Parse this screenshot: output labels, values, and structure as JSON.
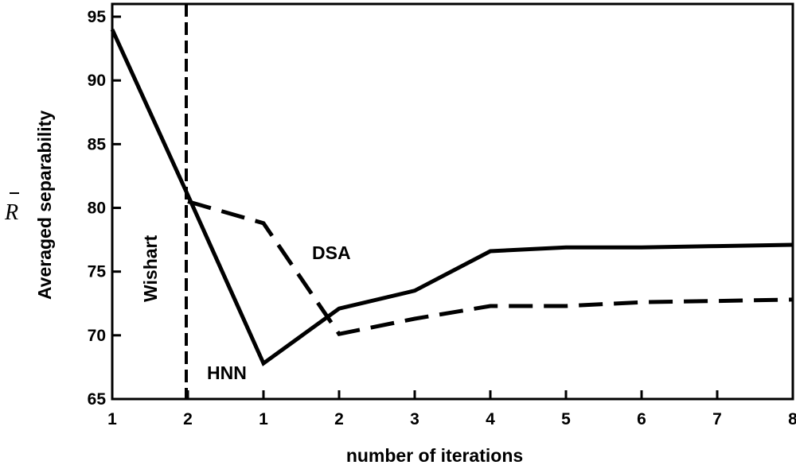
{
  "chart_data": {
    "type": "line",
    "xlabel": "number of iterations",
    "ylabel": "Averaged separability",
    "ylabel_symbol": "R",
    "ylim": [
      65,
      96
    ],
    "yticks": [
      65,
      70,
      75,
      80,
      85,
      90,
      95
    ],
    "x_positions": [
      0,
      1,
      2,
      3,
      4,
      5,
      6,
      7,
      8,
      9
    ],
    "x_tick_labels": [
      "1",
      "2",
      "1",
      "2",
      "3",
      "4",
      "5",
      "6",
      "7",
      "8"
    ],
    "xlim": [
      0,
      9
    ],
    "grid": false,
    "series": [
      {
        "name": "HNN",
        "style": "solid",
        "x": [
          0,
          1,
          2,
          3,
          4,
          5,
          6,
          7,
          8,
          9
        ],
        "y": [
          94.0,
          81.0,
          67.8,
          72.1,
          73.5,
          76.6,
          76.9,
          76.9,
          77.0,
          77.1
        ]
      },
      {
        "name": "DSA",
        "style": "dashed",
        "x": [
          1,
          2,
          3,
          4,
          5,
          6,
          7,
          8,
          9
        ],
        "y": [
          80.5,
          78.8,
          70.1,
          71.3,
          72.3,
          72.3,
          72.6,
          72.7,
          72.8
        ]
      }
    ],
    "annotations": [
      {
        "text": "Wishart",
        "x": 1
      },
      {
        "text": "DSA"
      },
      {
        "text": "HNN"
      }
    ],
    "colors": {
      "line": "#000000",
      "axes": "#000000",
      "background": "#ffffff"
    }
  }
}
